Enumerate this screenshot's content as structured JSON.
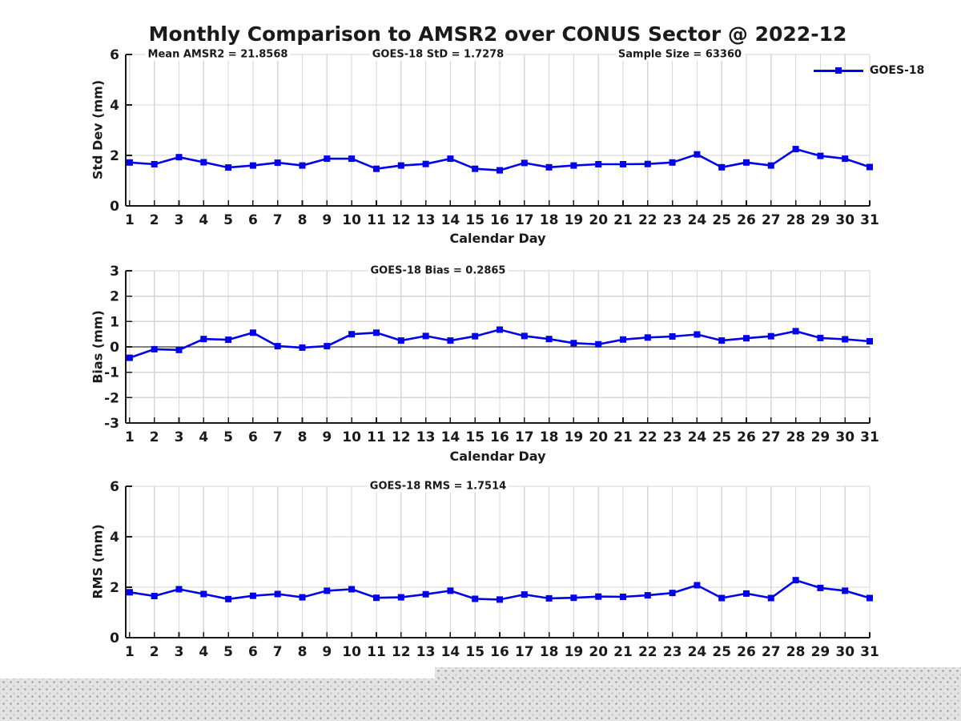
{
  "title": "Monthly Comparison to AMSR2 over CONUS Sector @ 2022-12",
  "legend": {
    "label": "GOES-18"
  },
  "colors": {
    "line": "#0000ec",
    "grid": "#d6d6d6",
    "axis": "#1a1a1a",
    "zero_line": "#000000",
    "background": "#ffffff"
  },
  "days": [
    1,
    2,
    3,
    4,
    5,
    6,
    7,
    8,
    9,
    10,
    11,
    12,
    13,
    14,
    15,
    16,
    17,
    18,
    19,
    20,
    21,
    22,
    23,
    24,
    25,
    26,
    27,
    28,
    29,
    30,
    31
  ],
  "chart_data": [
    {
      "type": "line",
      "title": "",
      "xlabel": "Calendar Day",
      "ylabel": "Std Dev (mm)",
      "ylim": [
        0,
        6
      ],
      "yticks": [
        0,
        2,
        4,
        6
      ],
      "grid": true,
      "legend_position": "outside-top-right",
      "annotations": [
        "Mean AMSR2 = 21.8568",
        "GOES-18 StD = 1.7278",
        "Sample Size = 63360"
      ],
      "series": [
        {
          "name": "GOES-18",
          "values": [
            1.72,
            1.65,
            1.93,
            1.73,
            1.52,
            1.6,
            1.71,
            1.6,
            1.87,
            1.87,
            1.47,
            1.6,
            1.66,
            1.87,
            1.47,
            1.41,
            1.7,
            1.53,
            1.6,
            1.65,
            1.65,
            1.66,
            1.72,
            2.04,
            1.53,
            1.72,
            1.6,
            2.25,
            1.98,
            1.87,
            1.54
          ]
        }
      ]
    },
    {
      "type": "line",
      "title": "",
      "xlabel": "Calendar Day",
      "ylabel": "Bias (mm)",
      "ylim": [
        -3,
        3
      ],
      "yticks": [
        3,
        2,
        1,
        0,
        -1,
        -2,
        -3
      ],
      "grid": true,
      "zero_line": true,
      "annotations": [
        "GOES-18 Bias = 0.2865"
      ],
      "series": [
        {
          "name": "GOES-18",
          "values": [
            -0.43,
            -0.09,
            -0.12,
            0.31,
            0.28,
            0.56,
            0.03,
            -0.03,
            0.03,
            0.5,
            0.56,
            0.25,
            0.43,
            0.25,
            0.42,
            0.68,
            0.43,
            0.31,
            0.15,
            0.1,
            0.29,
            0.37,
            0.41,
            0.49,
            0.25,
            0.34,
            0.42,
            0.62,
            0.35,
            0.3,
            0.22
          ]
        }
      ]
    },
    {
      "type": "line",
      "title": "",
      "xlabel": "",
      "ylabel": "RMS (mm)",
      "ylim": [
        0,
        6
      ],
      "yticks": [
        0,
        2,
        4,
        6
      ],
      "grid": true,
      "annotations": [
        "GOES-18 RMS = 1.7514"
      ],
      "series": [
        {
          "name": "GOES-18",
          "values": [
            1.8,
            1.65,
            1.92,
            1.73,
            1.53,
            1.66,
            1.73,
            1.6,
            1.86,
            1.92,
            1.58,
            1.6,
            1.72,
            1.86,
            1.54,
            1.51,
            1.71,
            1.56,
            1.58,
            1.63,
            1.62,
            1.68,
            1.77,
            2.08,
            1.57,
            1.75,
            1.57,
            2.28,
            1.97,
            1.86,
            1.57
          ]
        }
      ]
    }
  ]
}
